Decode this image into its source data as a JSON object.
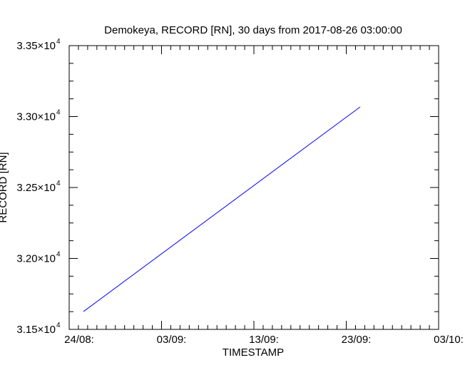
{
  "chart_data": {
    "type": "line",
    "title": "Demokeya, RECORD [RN], 30 days from  2017-08-26 03:00:00",
    "xlabel": "TIMESTAMP",
    "ylabel": "RECORD [RN]",
    "x_unit": "days since 24/08",
    "xlim": [
      0,
      40
    ],
    "ylim": [
      31500,
      33500
    ],
    "x_ticks": [
      {
        "value": 0,
        "label": "24/08:"
      },
      {
        "value": 10,
        "label": "03/09:"
      },
      {
        "value": 20,
        "label": "13/09:"
      },
      {
        "value": 30,
        "label": "23/09:"
      },
      {
        "value": 40,
        "label": "03/10:"
      }
    ],
    "x_minor_step": 1,
    "y_ticks": [
      {
        "value": 31500,
        "mantissa": "3.15",
        "exp": "4"
      },
      {
        "value": 32000,
        "mantissa": "3.20",
        "exp": "4"
      },
      {
        "value": 32500,
        "mantissa": "3.25",
        "exp": "4"
      },
      {
        "value": 33000,
        "mantissa": "3.30",
        "exp": "4"
      },
      {
        "value": 33500,
        "mantissa": "3.35",
        "exp": "4"
      }
    ],
    "y_minor_step": 125,
    "grid": false,
    "series": [
      {
        "name": "RECORD",
        "color": "#0000ff",
        "x": [
          1.55,
          31.5
        ],
        "y": [
          31626,
          33068
        ]
      }
    ]
  }
}
